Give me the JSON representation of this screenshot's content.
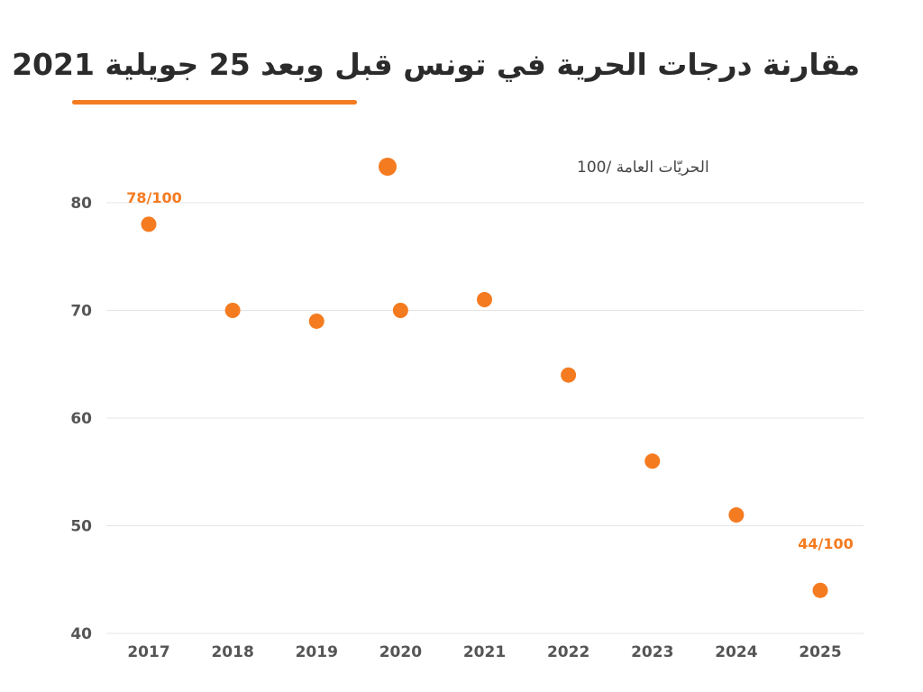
{
  "title": "مقارنة درجات الحرية في تونس قبل وبعد 25 جويلية 2021",
  "colors": {
    "accent": "#f47b20",
    "grid": "#e4e4e4",
    "title": "#2b2b2b"
  },
  "chart_data": {
    "type": "scatter",
    "title": "مقارنة درجات الحرية في تونس قبل وبعد 25 جويلية 2021",
    "xlabel": "",
    "ylabel": "",
    "categories": [
      "2017",
      "2018",
      "2019",
      "2020",
      "2021",
      "2022",
      "2023",
      "2024",
      "2025"
    ],
    "series": [
      {
        "name": "الحريّات العامة /100",
        "values": [
          78,
          70,
          69,
          70,
          71,
          64,
          56,
          51,
          44
        ]
      }
    ],
    "ylim": [
      40,
      82
    ],
    "yticks": [
      40,
      50,
      60,
      70,
      80
    ],
    "grid": true,
    "legend_position": "top-center",
    "annotations": [
      {
        "category": "2017",
        "text": "78/100"
      },
      {
        "category": "2025",
        "text": "44/100"
      }
    ]
  }
}
